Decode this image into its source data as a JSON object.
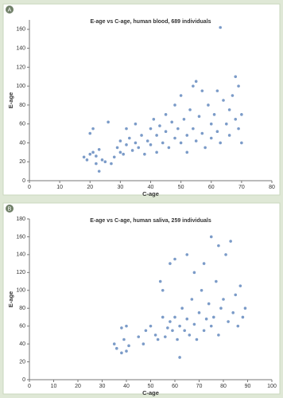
{
  "chart_data": [
    {
      "type": "scatter",
      "panel_label": "A",
      "title": "E-age vs C-age, human blood, 689 individuals",
      "x_label": "C-age",
      "y_label": "E-age",
      "color": "#7b9bc8",
      "x": [
        18,
        19,
        20,
        20,
        21,
        21,
        22,
        22,
        23,
        23,
        24,
        25,
        26,
        27,
        28,
        29,
        30,
        30,
        31,
        32,
        32,
        33,
        34,
        35,
        35,
        36,
        37,
        38,
        39,
        40,
        40,
        41,
        42,
        42,
        43,
        44,
        45,
        45,
        46,
        47,
        48,
        48,
        49,
        50,
        50,
        51,
        52,
        52,
        53,
        54,
        54,
        55,
        55,
        56,
        57,
        57,
        58,
        59,
        60,
        60,
        61,
        62,
        62,
        63,
        63,
        64,
        65,
        66,
        66,
        67,
        68,
        68,
        69,
        69,
        70,
        70
      ],
      "y": [
        25,
        22,
        28,
        50,
        55,
        30,
        18,
        26,
        10,
        33,
        22,
        20,
        62,
        18,
        25,
        35,
        30,
        42,
        28,
        38,
        55,
        45,
        32,
        40,
        60,
        35,
        48,
        28,
        42,
        55,
        38,
        65,
        30,
        48,
        58,
        40,
        52,
        70,
        35,
        62,
        45,
        80,
        55,
        40,
        90,
        65,
        48,
        30,
        75,
        55,
        100,
        42,
        105,
        68,
        50,
        95,
        35,
        80,
        60,
        45,
        70,
        95,
        52,
        40,
        162,
        85,
        60,
        75,
        48,
        90,
        65,
        110,
        55,
        100,
        70,
        40
      ],
      "xlim": [
        0,
        80
      ],
      "ylim": [
        0,
        170
      ],
      "xticks": [
        0,
        10,
        20,
        30,
        40,
        50,
        60,
        70,
        80
      ],
      "yticks": [
        0,
        20,
        40,
        60,
        80,
        100,
        120,
        140,
        160
      ]
    },
    {
      "type": "scatter",
      "panel_label": "B",
      "title": "E-age vs C-age, human saliva, 259 individuals",
      "x_label": "C-age",
      "y_label": "E-age",
      "color": "#7b9bc8",
      "x": [
        35,
        36,
        38,
        38,
        39,
        40,
        40,
        41,
        45,
        47,
        48,
        50,
        52,
        53,
        54,
        55,
        55,
        56,
        57,
        58,
        58,
        59,
        60,
        60,
        61,
        62,
        62,
        63,
        64,
        65,
        65,
        66,
        67,
        68,
        68,
        69,
        70,
        71,
        72,
        72,
        73,
        74,
        75,
        75,
        76,
        77,
        78,
        78,
        79,
        80,
        81,
        82,
        83,
        84,
        85,
        86,
        87,
        88,
        89
      ],
      "y": [
        40,
        35,
        58,
        30,
        45,
        32,
        60,
        38,
        48,
        40,
        55,
        60,
        50,
        45,
        110,
        70,
        100,
        48,
        58,
        130,
        65,
        55,
        135,
        70,
        45,
        60,
        25,
        80,
        55,
        140,
        68,
        50,
        90,
        62,
        120,
        45,
        75,
        100,
        55,
        130,
        68,
        85,
        160,
        60,
        70,
        110,
        50,
        150,
        80,
        90,
        140,
        65,
        155,
        75,
        95,
        60,
        105,
        70,
        80
      ],
      "xlim": [
        0,
        100
      ],
      "ylim": [
        0,
        180
      ],
      "xticks": [
        0,
        10,
        20,
        30,
        40,
        50,
        60,
        70,
        80,
        90,
        100
      ],
      "yticks": [
        0,
        20,
        40,
        60,
        80,
        100,
        120,
        140,
        160,
        180
      ]
    }
  ]
}
